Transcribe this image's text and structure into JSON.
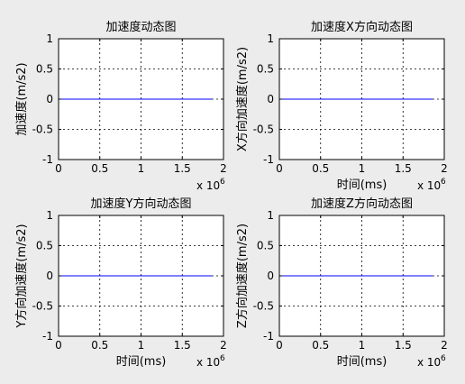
{
  "chart_data": [
    {
      "type": "line",
      "title": "加速度动态图",
      "xlabel": "",
      "ylabel": "加速度(m/s2)",
      "xlim": [
        0,
        2
      ],
      "ylim": [
        -1,
        1
      ],
      "x_multiplier": "x 10",
      "x_exponent": "6",
      "xticks": [
        "0",
        "0.5",
        "1",
        "1.5",
        "2"
      ],
      "yticks": [
        "1",
        "0.5",
        "0",
        "-0.5",
        "-1"
      ],
      "grid": true,
      "series": [
        {
          "x": [
            0,
            1.86
          ],
          "y": [
            0,
            0
          ],
          "color": "#0000ff"
        }
      ]
    },
    {
      "type": "line",
      "title": "加速度X方向动态图",
      "xlabel": "时间(ms)",
      "ylabel": "X方向加速度(m/s2)",
      "xlim": [
        0,
        2
      ],
      "ylim": [
        -1,
        1
      ],
      "x_multiplier": "x 10",
      "x_exponent": "6",
      "xticks": [
        "0",
        "0.5",
        "1",
        "1.5",
        "2"
      ],
      "yticks": [
        "1",
        "0.5",
        "0",
        "-0.5",
        "-1"
      ],
      "grid": true,
      "series": [
        {
          "x": [
            0,
            1.86
          ],
          "y": [
            0,
            0
          ],
          "color": "#0000ff"
        }
      ]
    },
    {
      "type": "line",
      "title": "加速度Y方向动态图",
      "xlabel": "时间(ms)",
      "ylabel": "Y方向加速度(m/s2)",
      "xlim": [
        0,
        2
      ],
      "ylim": [
        -1,
        1
      ],
      "x_multiplier": "x 10",
      "x_exponent": "6",
      "xticks": [
        "0",
        "0.5",
        "1",
        "1.5",
        "2"
      ],
      "yticks": [
        "1",
        "0.5",
        "0",
        "-0.5",
        "-1"
      ],
      "grid": true,
      "series": [
        {
          "x": [
            0,
            1.86
          ],
          "y": [
            0,
            0
          ],
          "color": "#0000ff"
        }
      ]
    },
    {
      "type": "line",
      "title": "加速度Z方向动态图",
      "xlabel": "时间(ms)",
      "ylabel": "Z方向加速度(m/s2)",
      "xlim": [
        0,
        2
      ],
      "ylim": [
        -1,
        1
      ],
      "x_multiplier": "x 10",
      "x_exponent": "6",
      "xticks": [
        "0",
        "0.5",
        "1",
        "1.5",
        "2"
      ],
      "yticks": [
        "1",
        "0.5",
        "0",
        "-0.5",
        "-1"
      ],
      "grid": true,
      "series": [
        {
          "x": [
            0,
            1.86
          ],
          "y": [
            0,
            0
          ],
          "color": "#0000ff"
        }
      ]
    }
  ],
  "colors": {
    "figure_background": "#ececec",
    "axes_background": "#ffffff",
    "line": "#0000ff"
  }
}
